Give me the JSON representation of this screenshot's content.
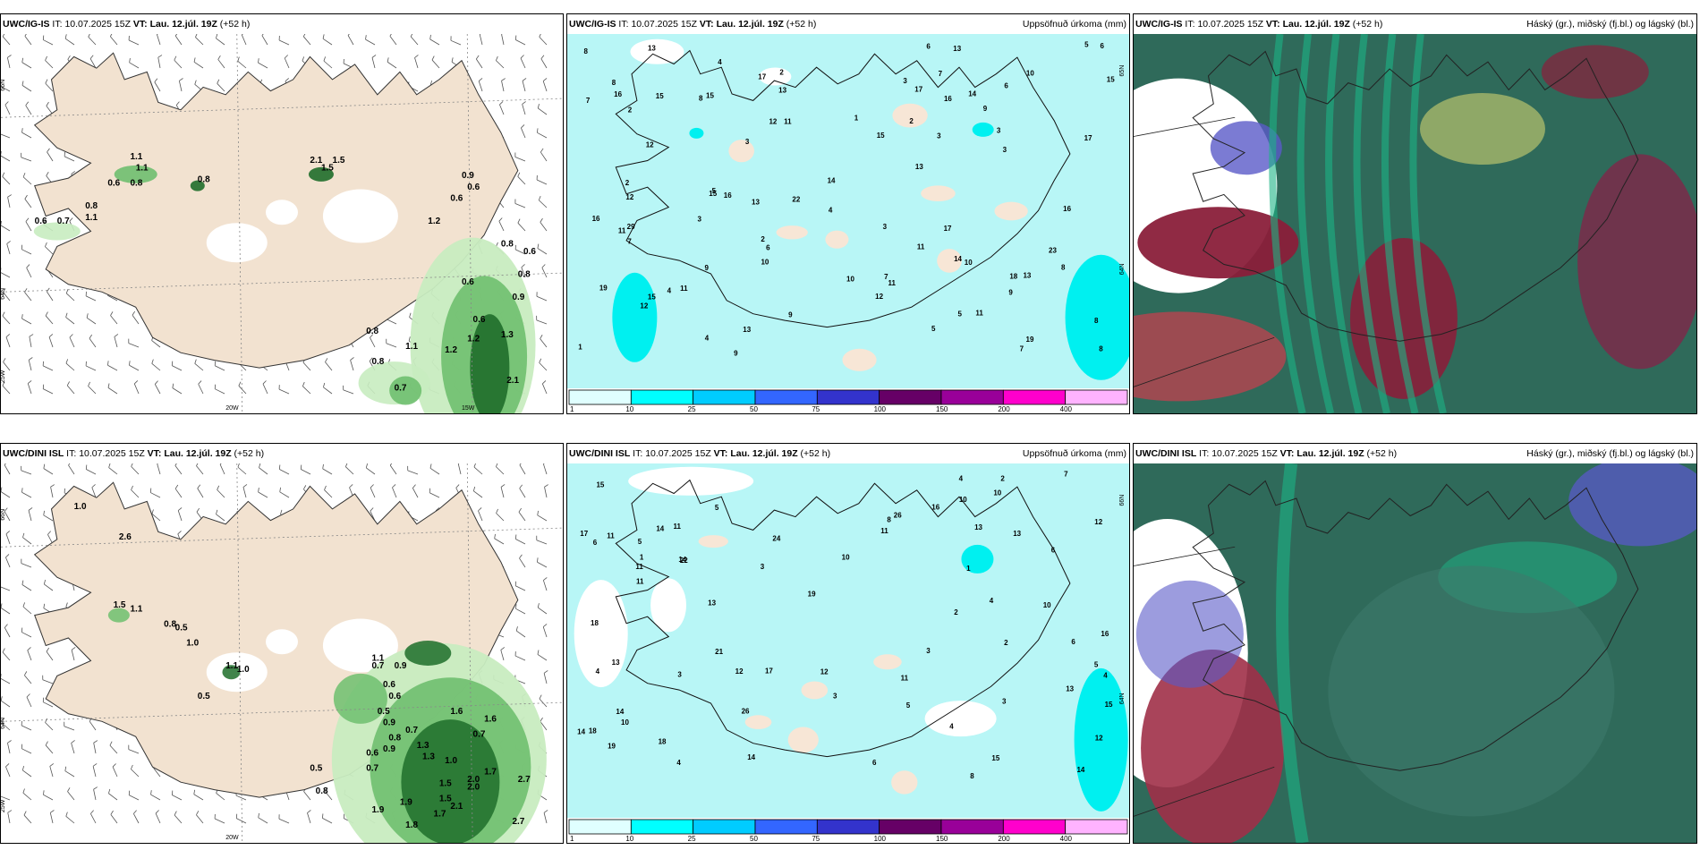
{
  "rows": [
    {
      "panels": [
        {
          "type": "wind",
          "model": "UWC/IG-IS",
          "it_label": "IT:",
          "it_value": "10.07.2025 15Z",
          "vt_label": "VT:",
          "vt_value": "Lau. 12.júl. 19Z",
          "lead": "(+52 h)",
          "right_title": "",
          "lat_labels": [
            "66N",
            "64N",
            "25W"
          ],
          "lon_labels": [
            "20W",
            "15W"
          ],
          "values": [
            "1.1",
            "0.6",
            "0.8",
            "0.6",
            "0.7",
            "0.8",
            "1.1",
            "0.8",
            "2.1",
            "0.6",
            "0.9",
            "0.6",
            "1.2",
            "0.8",
            "0.6",
            "0.8",
            "0.6",
            "0.9",
            "0.6",
            "1.2",
            "1.2",
            "0.8",
            "1.3",
            "0.8",
            "2.1",
            "0.7",
            "1.1",
            "1.5",
            "1.1",
            "1.5"
          ]
        },
        {
          "type": "precip",
          "model": "UWC/IG-IS",
          "it_label": "IT:",
          "it_value": "10.07.2025 15Z",
          "vt_label": "VT:",
          "vt_value": "Lau. 12.júl. 19Z",
          "lead": "(+52 h)",
          "right_title": "Uppsöfnuð úrkoma (mm)",
          "lat_labels": [
            "65N",
            "64N"
          ],
          "values": [
            "4",
            "3",
            "2",
            "2",
            "2",
            "1",
            "1",
            "2",
            "4",
            "9",
            "13",
            "10",
            "13",
            "11",
            "6",
            "7",
            "9",
            "8",
            "3",
            "3",
            "5",
            "12",
            "16",
            "14",
            "17",
            "23",
            "13",
            "12",
            "10",
            "11",
            "8",
            "8",
            "3",
            "3",
            "11",
            "13",
            "5",
            "3",
            "7",
            "9",
            "10",
            "12",
            "15",
            "18",
            "13",
            "17",
            "19",
            "15",
            "14",
            "13",
            "12",
            "15",
            "15",
            "16",
            "17",
            "16",
            "16",
            "29",
            "13",
            "11",
            "19",
            "22",
            "17",
            "16",
            "15",
            "8",
            "11",
            "11",
            "5",
            "6",
            "7",
            "8",
            "9",
            "10",
            "6",
            "7",
            "8",
            "4",
            "3",
            "5",
            "2",
            "6",
            "12",
            "9",
            "4",
            "7",
            "14",
            "15"
          ],
          "colorbar": {
            "colors": [
              "#e0ffff",
              "#00ffff",
              "#00ccff",
              "#3366ff",
              "#3333cc",
              "#660066",
              "#990099",
              "#ff00cc",
              "#ffb3ff"
            ],
            "ticks": [
              "1",
              "10",
              "25",
              "50",
              "75",
              "100",
              "150",
              "200",
              "400"
            ]
          }
        },
        {
          "type": "cloud",
          "model": "UWC/IG-IS",
          "it_label": "IT:",
          "it_value": "10.07.2025 15Z",
          "vt_label": "VT:",
          "vt_value": "Lau. 12.júl. 19Z",
          "lead": "(+52 h)",
          "right_title": "Háský (gr.), miðský (fj.bl.) og lágský (bl.)"
        }
      ]
    },
    {
      "panels": [
        {
          "type": "wind",
          "model": "UWC/DINI ISL",
          "it_label": "IT:",
          "it_value": "10.07.2025 15Z",
          "vt_label": "VT:",
          "vt_value": "Lau. 12.júl. 19Z",
          "lead": "(+52 h)",
          "right_title": "",
          "lat_labels": [
            "66N",
            "64N",
            "25W"
          ],
          "lon_labels": [
            "20W"
          ],
          "values": [
            "1.0",
            "2.6",
            "1.5",
            "1.1",
            "0.8",
            "0.5",
            "1.0",
            "1.1",
            "1.0",
            "0.5",
            "0.9",
            "0.7",
            "0.6",
            "1.1",
            "0.6",
            "0.5",
            "0.9",
            "0.7",
            "0.8",
            "0.9",
            "1.0",
            "1.6",
            "0.7",
            "1.7",
            "1.6",
            "0.6",
            "0.7",
            "0.5",
            "0.8",
            "1.3",
            "1.3",
            "1.5",
            "1.9",
            "2.0",
            "2.0",
            "2.7",
            "1.9",
            "1.7",
            "2.7",
            "1.5",
            "1.8",
            "2.1"
          ]
        },
        {
          "type": "precip",
          "model": "UWC/DINI ISL",
          "it_label": "IT:",
          "it_value": "10.07.2025 15Z",
          "vt_label": "VT:",
          "vt_value": "Lau. 12.júl. 19Z",
          "lead": "(+52 h)",
          "right_title": "Uppsöfnuð úrkoma (mm)",
          "lat_labels": [
            "66N",
            "64N"
          ],
          "values": [
            "5",
            "3",
            "2",
            "4",
            "2",
            "6",
            "12",
            "15",
            "10",
            "17",
            "13",
            "4",
            "3",
            "4",
            "5",
            "1",
            "4",
            "5",
            "3",
            "6",
            "6",
            "8",
            "3",
            "5",
            "4",
            "11",
            "13",
            "10",
            "18",
            "26",
            "26",
            "21",
            "14",
            "22",
            "18",
            "19",
            "17",
            "15",
            "16",
            "24",
            "13",
            "12",
            "11",
            "11",
            "10",
            "19",
            "12",
            "11",
            "11",
            "14",
            "14",
            "14",
            "15",
            "13",
            "18",
            "13",
            "14",
            "16",
            "12",
            "14",
            "11",
            "10",
            "6",
            "7",
            "8",
            "10",
            "4",
            "2",
            "1",
            "3"
          ],
          "colorbar": {
            "colors": [
              "#e0ffff",
              "#00ffff",
              "#00ccff",
              "#3366ff",
              "#3333cc",
              "#660066",
              "#990099",
              "#ff00cc",
              "#ffb3ff"
            ],
            "ticks": [
              "1",
              "10",
              "25",
              "50",
              "75",
              "100",
              "150",
              "200",
              "400"
            ]
          }
        },
        {
          "type": "cloud",
          "model": "UWC/DINI ISL",
          "it_label": "IT:",
          "it_value": "10.07.2025 15Z",
          "vt_label": "VT:",
          "vt_value": "Lau. 12.júl. 19Z",
          "lead": "(+52 h)",
          "right_title": "Háský (gr.), miðský (fj.bl.) og lágský (bl.)"
        }
      ]
    }
  ],
  "colors": {
    "land": "#f2e2d0",
    "precip_fill": "#b8f6f6",
    "green_light": "#c8ecc0",
    "green_mid": "#6fbf6f",
    "green_dark": "#1f6e2a",
    "cloud_high": "#1db486",
    "cloud_mid": "#8a1f3a",
    "cloud_low": "#5a5ac8"
  }
}
